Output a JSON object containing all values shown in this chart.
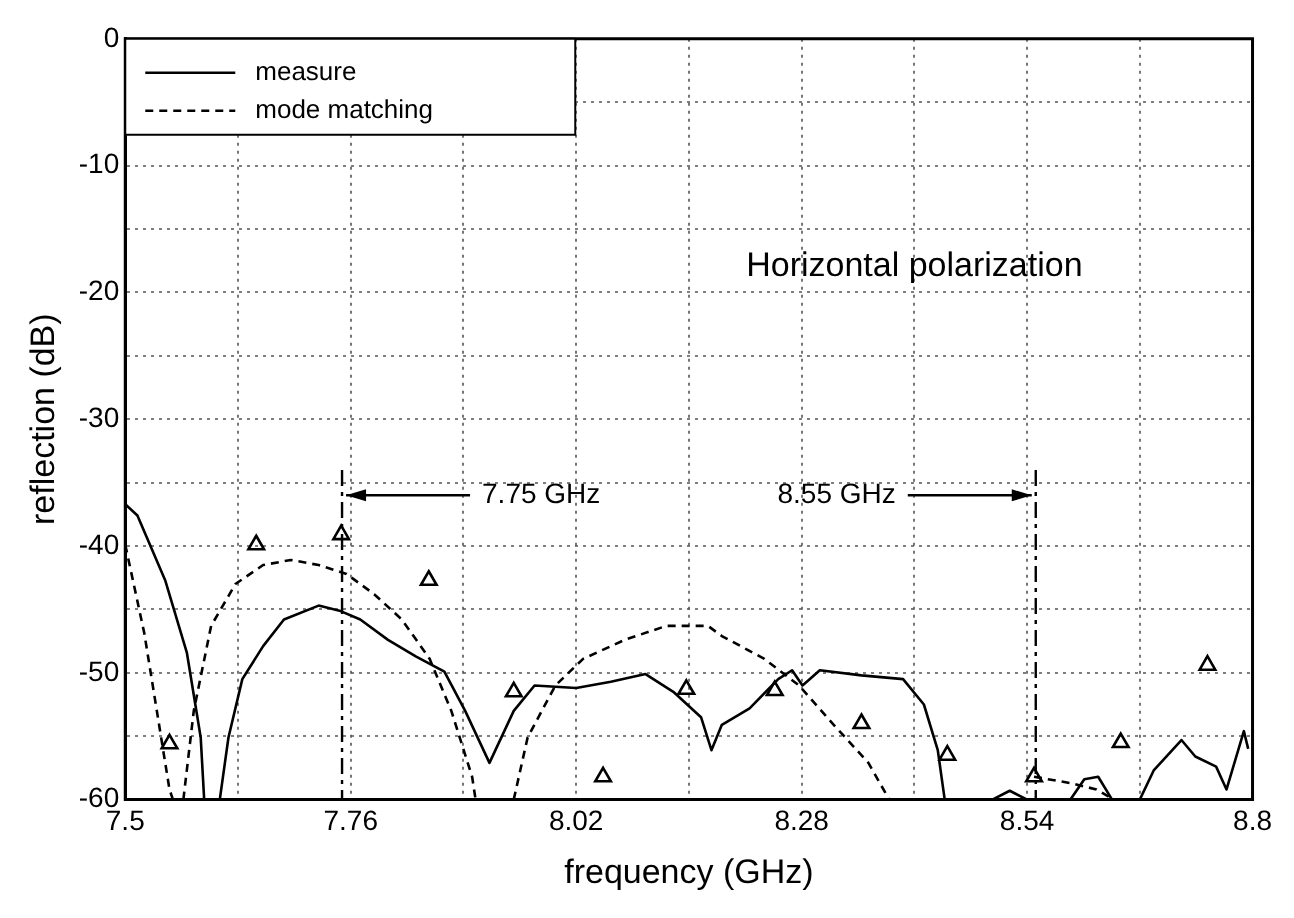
{
  "chart_data": {
    "type": "line",
    "xlabel": "frequency (GHz)",
    "ylabel": "reflection (dB)",
    "xlim": [
      7.5,
      8.8
    ],
    "ylim": [
      -60,
      0
    ],
    "xticks": [
      7.5,
      {
        "value": 7.63,
        "label": null
      },
      7.76,
      {
        "value": 7.89,
        "label": null
      },
      8.02,
      {
        "value": 8.15,
        "label": null
      },
      8.28,
      {
        "value": 8.41,
        "label": null
      },
      8.54,
      {
        "value": 8.67,
        "label": null
      },
      8.8
    ],
    "yticks": [
      -60,
      {
        "value": -55,
        "label": null
      },
      -50,
      {
        "value": -45,
        "label": null
      },
      -40,
      {
        "value": -35,
        "label": null
      },
      -30,
      {
        "value": -25,
        "label": null
      },
      -20,
      {
        "value": -15,
        "label": null
      },
      -10,
      {
        "value": -5,
        "label": null
      },
      0
    ],
    "grid": true,
    "legend": "top left",
    "annotations": [
      "Horizontal polarization"
    ],
    "ref_lines": [
      {
        "axis": "x",
        "value": 7.75,
        "label": "7.75 GHz",
        "line_style": "dashed"
      },
      {
        "axis": "x",
        "value": 8.55,
        "label": "8.55 GHz",
        "line_style": "dashed"
      }
    ],
    "series": [
      {
        "name": "measure",
        "type": "line",
        "color": "#000000",
        "line_style": "solid",
        "marker": "none",
        "x": [
          7.5,
          7.514,
          7.546,
          7.571,
          7.587,
          7.591,
          7.6,
          7.609,
          7.619,
          7.635,
          7.659,
          7.683,
          7.723,
          7.747,
          7.771,
          7.803,
          7.835,
          7.868,
          7.892,
          7.92,
          7.948,
          7.972,
          8.02,
          8.06,
          8.1,
          8.132,
          8.164,
          8.176,
          8.188,
          8.22,
          8.253,
          8.269,
          8.281,
          8.301,
          8.349,
          8.397,
          8.421,
          8.437,
          8.445,
          8.5,
          8.52,
          8.54,
          8.59,
          8.606,
          8.622,
          8.638,
          8.67,
          8.686,
          8.718,
          8.734,
          8.758,
          8.77,
          8.79,
          8.795
        ],
        "values": [
          -36.7,
          -37.6,
          -42.7,
          -48.4,
          -55.1,
          -60,
          null,
          -60,
          -55.1,
          -50.5,
          -47.9,
          -45.8,
          -44.7,
          -45.1,
          -45.8,
          -47.4,
          -48.7,
          -49.9,
          -53,
          -57.1,
          -53,
          -51,
          -51.2,
          -50.7,
          -50.1,
          -51.5,
          -53.5,
          -56.1,
          -54.1,
          -52.8,
          -50.5,
          -49.8,
          -51,
          -49.8,
          -50.2,
          -50.5,
          -52.5,
          -56.1,
          -60,
          -60,
          -59.3,
          -60,
          -60,
          -58.4,
          -58.2,
          -60,
          -60,
          -57.7,
          -55.3,
          -56.6,
          -57.4,
          -59.2,
          -54.6,
          -56
        ]
      },
      {
        "name": "mode matching",
        "type": "line",
        "color": "#000000",
        "line_style": "dashed",
        "marker": "none",
        "x": [
          7.5,
          7.522,
          7.539,
          7.551,
          7.555,
          7.56,
          7.567,
          7.579,
          7.599,
          7.627,
          7.659,
          7.691,
          7.723,
          7.755,
          7.787,
          7.819,
          7.851,
          7.876,
          7.9,
          7.904,
          7.93,
          7.948,
          7.964,
          7.996,
          8.028,
          8.076,
          8.124,
          8.172,
          8.188,
          8.237,
          8.277,
          8.317,
          8.357,
          8.381,
          8.45,
          8.548,
          8.59,
          8.62,
          8.64
        ],
        "values": [
          -39.9,
          -46.9,
          -54.1,
          -59.2,
          -60,
          null,
          -60,
          -53,
          -46.3,
          -43,
          -41.5,
          -41.1,
          -41.5,
          -42.2,
          -43.8,
          -45.8,
          -48.9,
          -53,
          -58.2,
          -60,
          null,
          -60,
          -55.1,
          -51,
          -48.9,
          -47.4,
          -46.3,
          -46.3,
          -47.1,
          -48.9,
          -51,
          -54.1,
          -57.1,
          -60,
          null,
          -58.2,
          -58.7,
          -59.2,
          -60
        ]
      },
      {
        "type": "scatter",
        "color": "#000000",
        "marker": "triangle",
        "x": [
          7.551,
          7.651,
          7.749,
          7.85,
          7.948,
          8.051,
          8.147,
          8.249,
          8.349,
          8.448,
          8.548,
          8.648,
          8.748
        ],
        "values": [
          -55.6,
          -39.9,
          -39.1,
          -42.7,
          -51.5,
          -58.2,
          -51.3,
          -51.4,
          -54,
          -56.5,
          -58.2,
          -55.5,
          -49.4
        ]
      }
    ]
  }
}
